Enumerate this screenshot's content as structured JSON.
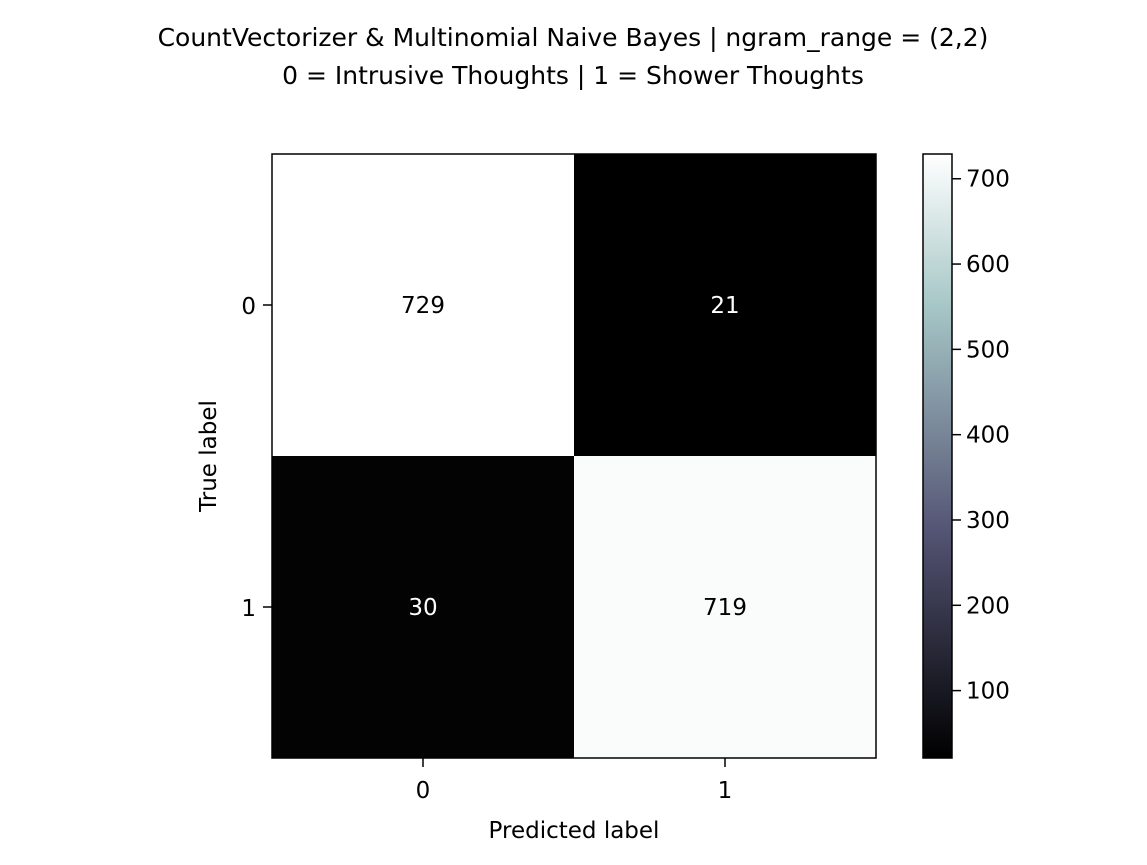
{
  "chart_data": {
    "type": "heatmap",
    "title_lines": [
      "CountVectorizer & Multinomial Naive Bayes | ngram_range = (2,2)",
      "0 = Intrusive Thoughts | 1 = Shower Thoughts"
    ],
    "xlabel": "Predicted label",
    "ylabel": "True label",
    "x_categories": [
      "0",
      "1"
    ],
    "y_categories": [
      "0",
      "1"
    ],
    "matrix": [
      [
        729,
        21
      ],
      [
        30,
        719
      ]
    ],
    "colormap": "bone",
    "colorbar": {
      "range": [
        21,
        729
      ],
      "ticks": [
        100,
        200,
        300,
        400,
        500,
        600,
        700
      ],
      "tick_labels": [
        "100",
        "200",
        "300",
        "400",
        "500",
        "600",
        "700"
      ]
    },
    "grid": false,
    "colors": {
      "low": "#000000",
      "high": "#ffffff",
      "text_on_dark": "#ffffff",
      "text_on_light": "#000000"
    }
  }
}
